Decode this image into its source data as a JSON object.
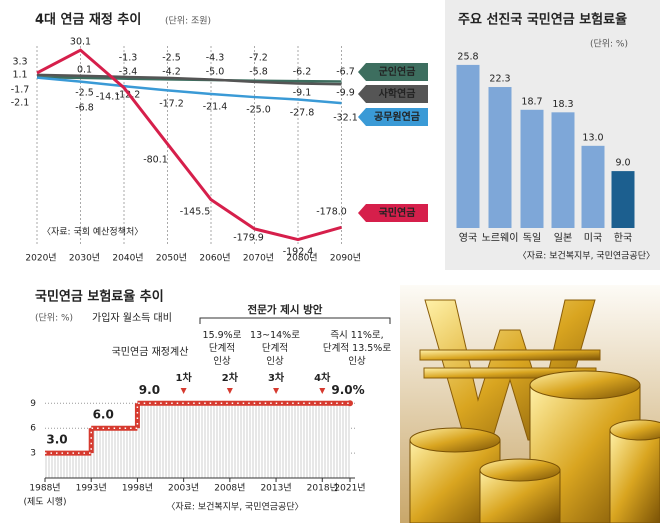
{
  "chart_data": [
    {
      "type": "line",
      "title": "4대 연금 재정 추이",
      "unit": "(단위: 조원)",
      "source": "〈자료: 국회 예산정책처〉",
      "categories": [
        "2020년",
        "2030년",
        "2040년",
        "2050년",
        "2060년",
        "2070년",
        "2080년",
        "2090년"
      ],
      "ylim": [
        -200,
        35
      ],
      "series": [
        {
          "name": "군인연금",
          "color": "#3d6e5f",
          "values": [
            -1.7,
            -2.5,
            -3.4,
            -4.2,
            -5.0,
            -5.8,
            -6.2,
            -6.7
          ],
          "value_labels": [
            "-1.7",
            "-2.5",
            "-3.4",
            "-4.2",
            "-5.0",
            "-5.8",
            "-6.2",
            "-6.7"
          ]
        },
        {
          "name": "사학연금",
          "color": "#555555",
          "values": [
            1.1,
            0.1,
            -1.3,
            -2.5,
            -4.3,
            -7.2,
            -9.1,
            -9.9
          ],
          "value_labels": [
            "1.1",
            "0.1",
            "-1.3",
            "-2.5",
            "-4.3",
            "-7.2",
            "-9.1",
            "-9.9"
          ]
        },
        {
          "name": "공무원연금",
          "color": "#3a9ad6",
          "values": [
            -2.1,
            -6.8,
            -12.2,
            -17.2,
            -21.4,
            -25.0,
            -27.8,
            -32.1
          ],
          "value_labels": [
            "-2.1",
            "-6.8",
            "-12.2",
            "-17.2",
            "-21.4",
            "-25.0",
            "-27.8",
            "-32.1"
          ]
        },
        {
          "name": "국민연금",
          "color": "#d61f4b",
          "values": [
            3.3,
            30.1,
            -14.1,
            -80.1,
            -145.5,
            -179.9,
            -192.4,
            -178.0
          ],
          "value_labels": [
            "3.3",
            "30.1",
            "-14.1",
            "-80.1",
            "-145.5",
            "-179.9",
            "-192.4",
            "-178.0"
          ]
        }
      ]
    },
    {
      "type": "bar",
      "title": "주요 선진국 국민연금 보험료율",
      "unit": "(단위: %)",
      "source": "〈자료: 보건복지부, 국민연금공단〉",
      "categories": [
        "영국",
        "노르웨이",
        "독일",
        "일본",
        "미국",
        "한국"
      ],
      "values": [
        25.8,
        22.3,
        18.7,
        18.3,
        13.0,
        9.0
      ],
      "value_labels": [
        "25.8",
        "22.3",
        "18.7",
        "18.3",
        "13.0",
        "9.0"
      ],
      "colors": [
        "#7ea7d8",
        "#7ea7d8",
        "#7ea7d8",
        "#7ea7d8",
        "#7ea7d8",
        "#1c5f8f"
      ],
      "ylim": [
        0,
        28
      ]
    },
    {
      "type": "step",
      "title": "국민연금 보험료율 추이",
      "unit": "(단위: %)",
      "subtitle": "가입자 월소득 대비",
      "source": "〈자료: 보건복지부, 국민연금공단〉",
      "x": [
        1988,
        1993,
        1998,
        2021
      ],
      "values": [
        3.0,
        6.0,
        9.0,
        9.0
      ],
      "value_labels": [
        "3.0",
        "6.0",
        "9.0",
        "9.0%"
      ],
      "color": "#d63a2f",
      "xlim": [
        1988,
        2021
      ],
      "ylim": [
        0,
        10
      ],
      "yticks": [
        3,
        6,
        9
      ],
      "grid": true,
      "xticks": [
        {
          "value": 1988,
          "label": "1988년"
        },
        {
          "value": 1993,
          "label": "1993년"
        },
        {
          "value": 1998,
          "label": "1998년"
        },
        {
          "value": 2003,
          "label": "2003년"
        },
        {
          "value": 2008,
          "label": "2008년"
        },
        {
          "value": 2013,
          "label": "2013년"
        },
        {
          "value": 2018,
          "label": "2018년"
        },
        {
          "value": 2021,
          "label": "2021년"
        }
      ],
      "first_tick_note": "(제도 시행)",
      "calc_label": "국민연금 재정계산",
      "rounds": [
        {
          "x": 2003,
          "label": "1차"
        },
        {
          "x": 2008,
          "label": "2차"
        },
        {
          "x": 2013,
          "label": "3차"
        },
        {
          "x": 2018,
          "label": "4차"
        }
      ],
      "expert_title": "전문가 제시 방안",
      "proposals": [
        {
          "lines": [
            "15.9%로",
            "단계적",
            "인상"
          ]
        },
        {
          "lines": [
            "13~14%로",
            "단계적",
            "인상"
          ]
        },
        {
          "lines": [
            "즉시 11%로,",
            "단계적 13.5%로",
            "인상"
          ]
        }
      ]
    }
  ]
}
